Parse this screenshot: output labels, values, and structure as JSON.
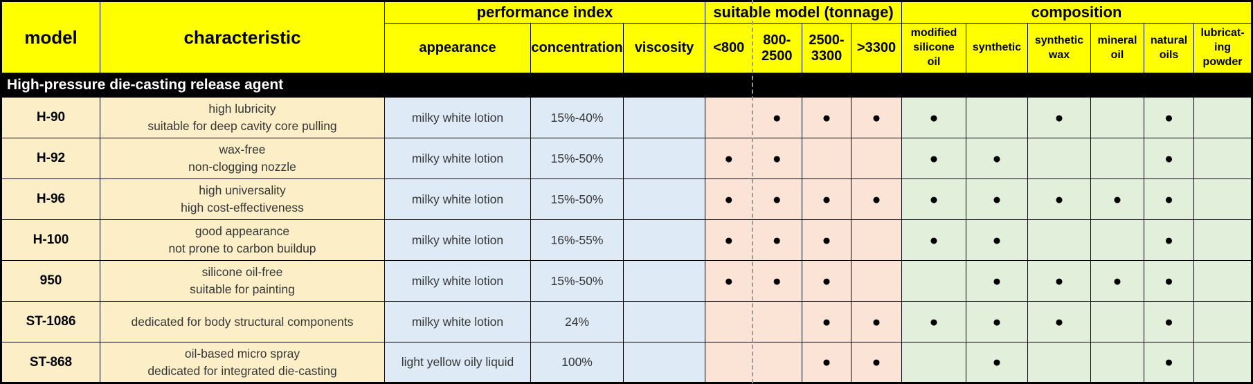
{
  "table": {
    "header": {
      "model": "model",
      "characteristic": "characteristic",
      "groups": [
        {
          "label": "performance index",
          "span": 3
        },
        {
          "label": "suitable model (tonnage)",
          "span": 4
        },
        {
          "label": "composition",
          "span": 6
        }
      ],
      "performance_cols": [
        "appearance",
        "concentration",
        "viscosity"
      ],
      "tonnage_cols": [
        "<800",
        "800-\n2500",
        "2500-\n3300",
        ">3300"
      ],
      "composition_cols": [
        "modified\nsilicone\noil",
        "synthetic",
        "synthetic\nwax",
        "mineral\noil",
        "natural\noils",
        "lubricat-\ning\npowder"
      ]
    },
    "section_title": "High-pressure die-casting release agent",
    "dot_symbol": "●",
    "colors": {
      "header_bg": "#FFFF00",
      "section_bg": "#000000",
      "section_text": "#FFFFFF",
      "model_characteristic_bg": "#FCEFC8",
      "performance_bg": "#DEEAF5",
      "tonnage_bg": "#FBE3D5",
      "composition_bg": "#E2EFDA"
    },
    "rows": [
      {
        "model": "H-90",
        "characteristic": "high lubricity\nsuitable for deep cavity core pulling",
        "appearance": "milky white lotion",
        "concentration": "15%-40%",
        "viscosity": "",
        "tonnage": [
          false,
          true,
          true,
          true
        ],
        "composition": [
          true,
          false,
          true,
          false,
          true,
          false
        ]
      },
      {
        "model": "H-92",
        "characteristic": "wax-free\nnon-clogging nozzle",
        "appearance": "milky white lotion",
        "concentration": "15%-50%",
        "viscosity": "",
        "tonnage": [
          true,
          true,
          false,
          false
        ],
        "composition": [
          true,
          true,
          false,
          false,
          true,
          false
        ]
      },
      {
        "model": "H-96",
        "characteristic": "high universality\nhigh cost-effectiveness",
        "appearance": "milky white lotion",
        "concentration": "15%-50%",
        "viscosity": "",
        "tonnage": [
          true,
          true,
          true,
          true
        ],
        "composition": [
          true,
          true,
          true,
          true,
          true,
          false
        ]
      },
      {
        "model": "H-100",
        "characteristic": "good appearance\nnot prone to carbon buildup",
        "appearance": "milky white lotion",
        "concentration": "16%-55%",
        "viscosity": "",
        "tonnage": [
          true,
          true,
          true,
          false
        ],
        "composition": [
          true,
          true,
          false,
          false,
          true,
          false
        ]
      },
      {
        "model": "950",
        "characteristic": "silicone oil-free\nsuitable for painting",
        "appearance": "milky white lotion",
        "concentration": "15%-50%",
        "viscosity": "",
        "tonnage": [
          true,
          true,
          true,
          false
        ],
        "composition": [
          false,
          true,
          true,
          true,
          true,
          false
        ]
      },
      {
        "model": "ST-1086",
        "characteristic": "dedicated for body structural components",
        "appearance": "milky white lotion",
        "concentration": "24%",
        "viscosity": "",
        "tonnage": [
          false,
          false,
          true,
          true
        ],
        "composition": [
          true,
          true,
          true,
          false,
          true,
          false
        ]
      },
      {
        "model": "ST-868",
        "characteristic": "oil-based micro spray\ndedicated for integrated die-casting",
        "appearance": "light yellow oily liquid",
        "concentration": "100%",
        "viscosity": "",
        "tonnage": [
          false,
          false,
          true,
          true
        ],
        "composition": [
          false,
          true,
          false,
          false,
          true,
          false
        ]
      }
    ]
  }
}
